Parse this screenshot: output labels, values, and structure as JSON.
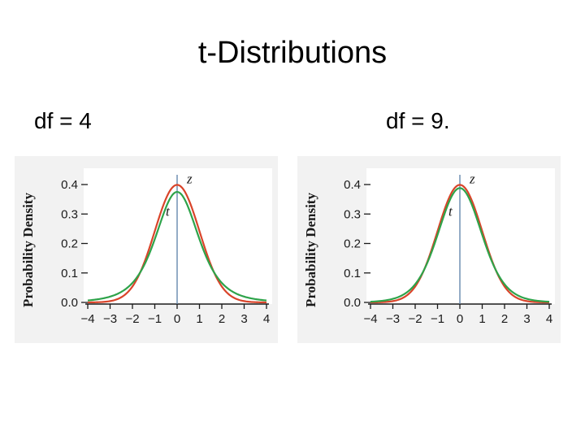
{
  "page": {
    "title": "t-Distributions"
  },
  "charts": [
    {
      "label": "df = 4"
    },
    {
      "label": "df = 9."
    }
  ],
  "colors": {
    "z_curve": "#d9442a",
    "t_curve": "#2ea34a",
    "axis": "#5a7fa8",
    "tick": "#1a1a1a",
    "panel_bg": "#f2f2f2"
  },
  "chart_data": [
    {
      "type": "line",
      "df": 4,
      "xlim": [
        -4,
        4
      ],
      "ylim": [
        0,
        0.4
      ],
      "x_ticks": [
        -4,
        -3,
        -2,
        -1,
        0,
        1,
        2,
        3,
        4
      ],
      "x_tick_labels": [
        "−4",
        "−3",
        "−2",
        "−1",
        "0",
        "1",
        "2",
        "3",
        "4"
      ],
      "y_ticks": [
        0,
        0.1,
        0.2,
        0.3,
        0.4
      ],
      "y_tick_labels": [
        "0.0",
        "0.1",
        "0.2",
        "0.3",
        "0.4"
      ],
      "ylabel": "Probability Density",
      "series": [
        {
          "name": "z",
          "distribution": "normal"
        },
        {
          "name": "t",
          "distribution": "student-t",
          "df": 4
        }
      ]
    },
    {
      "type": "line",
      "df": 9,
      "xlim": [
        -4,
        4
      ],
      "ylim": [
        0,
        0.4
      ],
      "x_ticks": [
        -4,
        -3,
        -2,
        -1,
        0,
        1,
        2,
        3,
        4
      ],
      "x_tick_labels": [
        "−4",
        "−3",
        "−2",
        "−1",
        "0",
        "1",
        "2",
        "3",
        "4"
      ],
      "y_ticks": [
        0,
        0.1,
        0.2,
        0.3,
        0.4
      ],
      "y_tick_labels": [
        "0.0",
        "0.1",
        "0.2",
        "0.3",
        "0.4"
      ],
      "ylabel": "Probability Density",
      "series": [
        {
          "name": "z",
          "distribution": "normal"
        },
        {
          "name": "t",
          "distribution": "student-t",
          "df": 9
        }
      ]
    }
  ]
}
